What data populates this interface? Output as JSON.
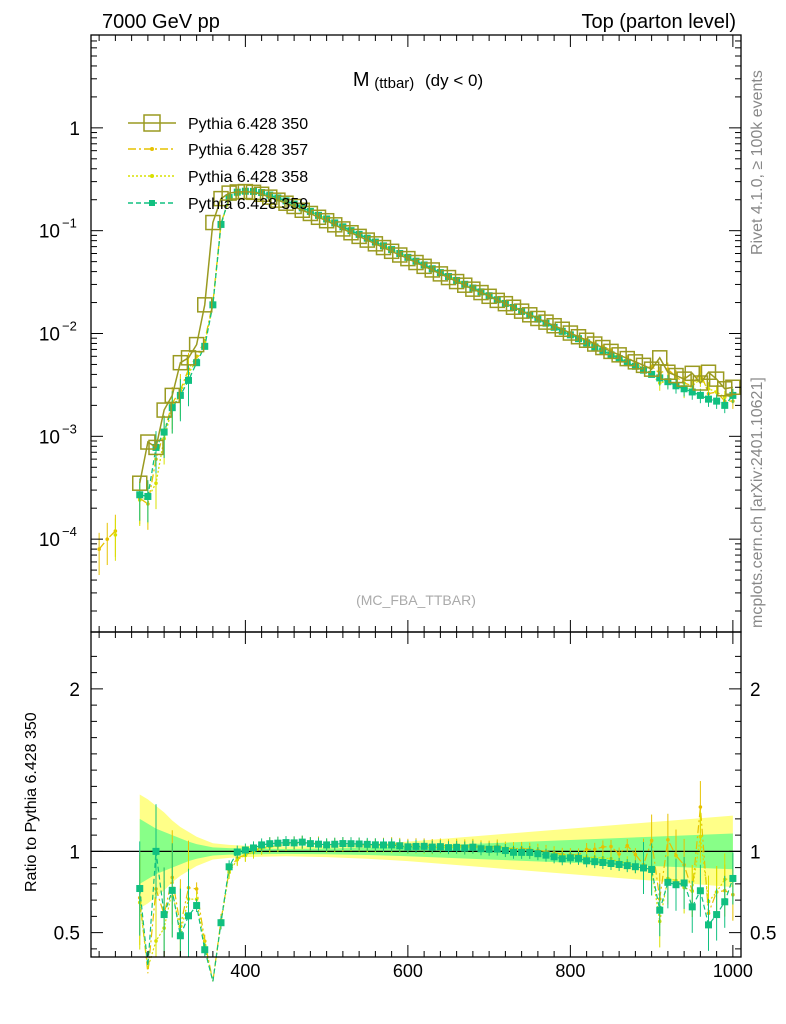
{
  "header": {
    "left": "7000 GeV pp",
    "right": "Top (parton level)"
  },
  "side_labels": {
    "rivet": "Rivet 4.1.0, ≥ 100k events",
    "mcplots": "mcplots.cern.ch [arXiv:2401.10621]"
  },
  "colors": {
    "s350": "#9a9a20",
    "s357": "#e6c200",
    "s358": "#d8e000",
    "s359": "#10c080",
    "band_yellow": "#ffff88",
    "band_green": "#88ff88"
  },
  "chart_data": {
    "type": "line",
    "title": "M (ttbar) (dy < 0)",
    "title_main": "M",
    "title_sub": "(ttbar)",
    "title_tail": "(dy < 0)",
    "watermark": "(MC_FBA_TTBAR)",
    "xlabel": "",
    "ylabel": "",
    "ratio_ylabel": "Ratio to Pythia 6.428 350",
    "xlim": [
      210,
      1010
    ],
    "ylim_log": [
      1.25e-05,
      8
    ],
    "ratio_ylim": [
      0.35,
      2.35
    ],
    "x_ticks": [
      400,
      600,
      800,
      1000
    ],
    "x_tick_labels": [
      "400",
      "600",
      "800",
      "1000"
    ],
    "y_ticks": [
      0.0001,
      0.001,
      0.01,
      0.1,
      1
    ],
    "y_tick_labels": [
      {
        "base": "10",
        "exp": "−4"
      },
      {
        "base": "10",
        "exp": "−3"
      },
      {
        "base": "10",
        "exp": "−2"
      },
      {
        "base": "10",
        "exp": "−1"
      },
      {
        "base": "1",
        "exp": ""
      }
    ],
    "ratio_ticks": [
      0.5,
      1,
      2
    ],
    "ratio_tick_labels": [
      "0.5",
      "1",
      "2"
    ],
    "legend": [
      "Pythia 6.428 350",
      "Pythia 6.428 357",
      "Pythia 6.428 358",
      "Pythia 6.428 359"
    ],
    "x": [
      220,
      230,
      240,
      250,
      260,
      270,
      280,
      290,
      300,
      310,
      320,
      330,
      340,
      350,
      360,
      370,
      380,
      390,
      400,
      410,
      420,
      430,
      440,
      450,
      460,
      470,
      480,
      490,
      500,
      510,
      520,
      530,
      540,
      550,
      560,
      570,
      580,
      590,
      600,
      610,
      620,
      630,
      640,
      650,
      660,
      670,
      680,
      690,
      700,
      710,
      720,
      730,
      740,
      750,
      760,
      770,
      780,
      790,
      800,
      810,
      820,
      830,
      840,
      850,
      860,
      870,
      880,
      890,
      900,
      910,
      920,
      930,
      940,
      950,
      960,
      970,
      980,
      990,
      1000
    ],
    "series": [
      {
        "name": "Pythia 6.428 350",
        "values": [
          null,
          null,
          null,
          null,
          null,
          0.00035,
          0.00088,
          0.00078,
          0.0018,
          0.0025,
          0.0052,
          0.0058,
          0.0078,
          0.019,
          0.12,
          0.205,
          0.232,
          0.238,
          0.24,
          0.236,
          0.226,
          0.212,
          0.198,
          0.185,
          0.172,
          0.158,
          0.147,
          0.135,
          0.125,
          0.114,
          0.104,
          0.0955,
          0.088,
          0.081,
          0.0745,
          0.0685,
          0.063,
          0.058,
          0.0535,
          0.049,
          0.045,
          0.0415,
          0.038,
          0.035,
          0.032,
          0.0295,
          0.027,
          0.025,
          0.023,
          0.021,
          0.0195,
          0.018,
          0.0165,
          0.0152,
          0.014,
          0.0129,
          0.0119,
          0.011,
          0.0101,
          0.0093,
          0.0086,
          0.0079,
          0.0073,
          0.0067,
          0.0062,
          0.0057,
          0.0053,
          0.0049,
          0.0045,
          0.0058,
          0.0042,
          0.0039,
          0.0036,
          0.0041,
          0.0033,
          0.0042,
          0.0036,
          0.0029,
          0.003
        ]
      },
      {
        "name": "Pythia 6.428 357",
        "values": [
          8e-05,
          0.0001,
          0.00012,
          null,
          null,
          0.00025,
          0.00022,
          0.0006,
          0.0011,
          0.0021,
          0.0028,
          0.0045,
          0.006,
          0.0085,
          0.02,
          0.118,
          0.205,
          0.228,
          0.235,
          0.236,
          0.232,
          0.222,
          0.208,
          0.195,
          0.181,
          0.167,
          0.154,
          0.142,
          0.13,
          0.119,
          0.109,
          0.1,
          0.092,
          0.084,
          0.0775,
          0.0715,
          0.066,
          0.0605,
          0.0555,
          0.051,
          0.0468,
          0.043,
          0.0395,
          0.0362,
          0.0332,
          0.0305,
          0.028,
          0.0257,
          0.0236,
          0.0217,
          0.0199,
          0.0183,
          0.0168,
          0.0154,
          0.0141,
          0.0129,
          0.0118,
          0.0108,
          0.0099,
          0.0091,
          0.0087,
          0.008,
          0.0075,
          0.0069,
          0.0061,
          0.0059,
          0.0052,
          0.0045,
          0.0048,
          0.0041,
          0.0045,
          0.0038,
          0.0033,
          0.0031,
          0.0042,
          0.0026,
          0.0027,
          0.0022,
          0.0022
        ]
      },
      {
        "name": "Pythia 6.428 358",
        "values": [
          null,
          null,
          0.00011,
          null,
          null,
          0.00024,
          0.00025,
          0.00035,
          0.00095,
          0.0019,
          0.0026,
          0.0041,
          0.0055,
          0.008,
          0.019,
          0.115,
          0.202,
          0.226,
          0.234,
          0.235,
          0.23,
          0.218,
          0.205,
          0.193,
          0.18,
          0.166,
          0.154,
          0.141,
          0.129,
          0.118,
          0.108,
          0.0995,
          0.0915,
          0.0838,
          0.077,
          0.0708,
          0.065,
          0.0597,
          0.0548,
          0.0503,
          0.0461,
          0.0424,
          0.039,
          0.0358,
          0.0329,
          0.0302,
          0.0278,
          0.0255,
          0.0234,
          0.0215,
          0.0198,
          0.0182,
          0.0166,
          0.0152,
          0.0139,
          0.0127,
          0.0117,
          0.0107,
          0.0098,
          0.009,
          0.0083,
          0.0076,
          0.007,
          0.0064,
          0.0058,
          0.0053,
          0.0048,
          0.0044,
          0.004,
          0.0033,
          0.0035,
          0.0032,
          0.0028,
          0.0031,
          0.0036,
          0.0029,
          0.0027,
          0.0024,
          0.0025
        ]
      },
      {
        "name": "Pythia 6.428 359",
        "values": [
          null,
          null,
          null,
          null,
          null,
          0.00027,
          0.00026,
          0.00078,
          0.0011,
          0.0019,
          0.0025,
          0.0035,
          0.0052,
          0.0075,
          0.019,
          0.115,
          0.21,
          0.237,
          0.242,
          0.241,
          0.235,
          0.222,
          0.208,
          0.195,
          0.181,
          0.167,
          0.154,
          0.141,
          0.13,
          0.119,
          0.109,
          0.1,
          0.092,
          0.0845,
          0.0775,
          0.0712,
          0.0655,
          0.06,
          0.055,
          0.0505,
          0.0464,
          0.0426,
          0.0391,
          0.0358,
          0.0328,
          0.0301,
          0.0277,
          0.0254,
          0.0233,
          0.0213,
          0.0196,
          0.0179,
          0.0164,
          0.0151,
          0.0138,
          0.0126,
          0.0115,
          0.0105,
          0.0097,
          0.0089,
          0.0081,
          0.0074,
          0.0068,
          0.0062,
          0.0057,
          0.0052,
          0.0048,
          0.0044,
          0.004,
          0.0037,
          0.0034,
          0.0031,
          0.0029,
          0.0027,
          0.0025,
          0.0023,
          0.0022,
          0.002,
          0.0025
        ]
      }
    ],
    "ratio_band": {
      "x": [
        270,
        280,
        290,
        300,
        310,
        320,
        330,
        340,
        350,
        360,
        380,
        400,
        450,
        500,
        550,
        600,
        650,
        700,
        750,
        800,
        850,
        900,
        950,
        1000
      ],
      "yellow_half": [
        0.35,
        0.32,
        0.28,
        0.24,
        0.19,
        0.15,
        0.12,
        0.09,
        0.07,
        0.05,
        0.04,
        0.035,
        0.03,
        0.035,
        0.045,
        0.06,
        0.08,
        0.1,
        0.12,
        0.14,
        0.16,
        0.18,
        0.2,
        0.22
      ],
      "green_half": [
        0.2,
        0.17,
        0.14,
        0.12,
        0.1,
        0.08,
        0.06,
        0.045,
        0.035,
        0.025,
        0.02,
        0.018,
        0.015,
        0.018,
        0.022,
        0.03,
        0.04,
        0.05,
        0.06,
        0.07,
        0.08,
        0.09,
        0.1,
        0.11
      ]
    }
  }
}
